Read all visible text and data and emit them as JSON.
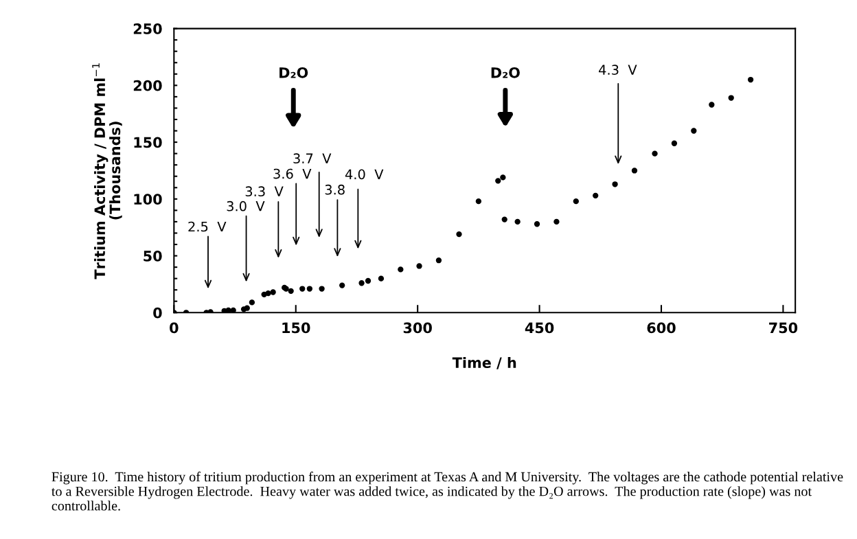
{
  "chart_data": {
    "type": "scatter",
    "xlabel": "Time / h",
    "ylabel": "Tritium Activity / DPM ml$^{−1}$\n(Thousands)",
    "x": [
      0,
      15,
      40,
      45,
      62,
      67,
      73,
      86,
      90,
      96,
      111,
      116,
      122,
      136,
      138,
      144,
      158,
      167,
      182,
      207,
      231,
      239,
      255,
      279,
      302,
      326,
      351,
      375,
      399,
      405,
      407,
      423,
      447,
      471,
      495,
      519,
      543,
      567,
      592,
      616,
      640,
      662,
      686,
      710
    ],
    "values": [
      0,
      0,
      0,
      0.5,
      1.5,
      2,
      2,
      3,
      4,
      9,
      16,
      17,
      18,
      22,
      21,
      19,
      21,
      21,
      21,
      24,
      26,
      28,
      30,
      38,
      41,
      46,
      69,
      98,
      116,
      119,
      82,
      80,
      78,
      80,
      98,
      103,
      113,
      125,
      140,
      149,
      160,
      183,
      189,
      205
    ],
    "color": "#000000",
    "marker": "circle",
    "xlim": [
      0,
      765
    ],
    "xticks": [
      0,
      150,
      300,
      450,
      600,
      750
    ],
    "ylim": [
      0,
      250
    ],
    "yticks": [
      0,
      {
        "value": 10,
        "label": null
      },
      {
        "value": 20,
        "label": null
      },
      {
        "value": 30,
        "label": null
      },
      {
        "value": 40,
        "label": null
      },
      50,
      {
        "value": 60,
        "label": null
      },
      {
        "value": 70,
        "label": null
      },
      {
        "value": 80,
        "label": null
      },
      {
        "value": 90,
        "label": null
      },
      100,
      {
        "value": 110,
        "label": null
      },
      {
        "value": 120,
        "label": null
      },
      {
        "value": 130,
        "label": null
      },
      {
        "value": 140,
        "label": null
      },
      150,
      {
        "value": 160,
        "label": null
      },
      {
        "value": 170,
        "label": null
      },
      {
        "value": 180,
        "label": null
      },
      {
        "value": 190,
        "label": null
      },
      200,
      {
        "value": 210,
        "label": null
      },
      {
        "value": 220,
        "label": null
      },
      {
        "value": 230,
        "label": null
      },
      {
        "value": 240,
        "label": null
      },
      250
    ],
    "grid": false,
    "legend": false,
    "annotations": [
      "2.5  V",
      "3.0  V",
      "3.3  V",
      "3.6  V",
      "3.7  V",
      "3.8",
      "4.0  V",
      "D₂O",
      "D₂O",
      "4.3  V",
      "Figure 10.  Time history of tritium production from an experiment at Texas A and M University.  The voltages are the cathode potential relative to a Reversible Hydrogen Electrode.  Heavy water was added twice, as indicated by the D₂O arrows.  The production rate (slope) was not controllable."
    ]
  }
}
